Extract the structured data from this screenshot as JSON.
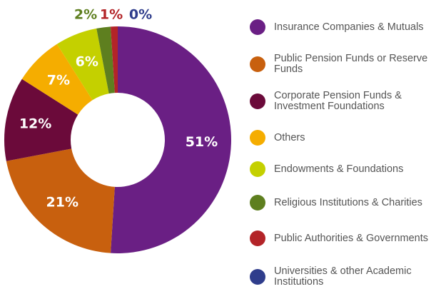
{
  "chart_data": {
    "type": "donut",
    "categories": [
      "Insurance Companies & Mutuals",
      "Public Pension Funds or Reserve Funds",
      "Corporate Pension Funds & Investment Foundations",
      "Others",
      "Endowments & Foundations",
      "Religious Institutions & Charities",
      "Public Authorities & Governments",
      "Universities & other Academic Institutions"
    ],
    "values": [
      51,
      21,
      12,
      7,
      6,
      2,
      1,
      0
    ],
    "value_labels": [
      "51%",
      "21%",
      "12%",
      "7%",
      "6%",
      "2%",
      "1%",
      "0%"
    ],
    "colors": [
      "#6a1f84",
      "#c8600e",
      "#6b0a3a",
      "#f5ad00",
      "#c4d000",
      "#5e7f1f",
      "#b32428",
      "#2f3d8c"
    ],
    "legend": "right"
  }
}
